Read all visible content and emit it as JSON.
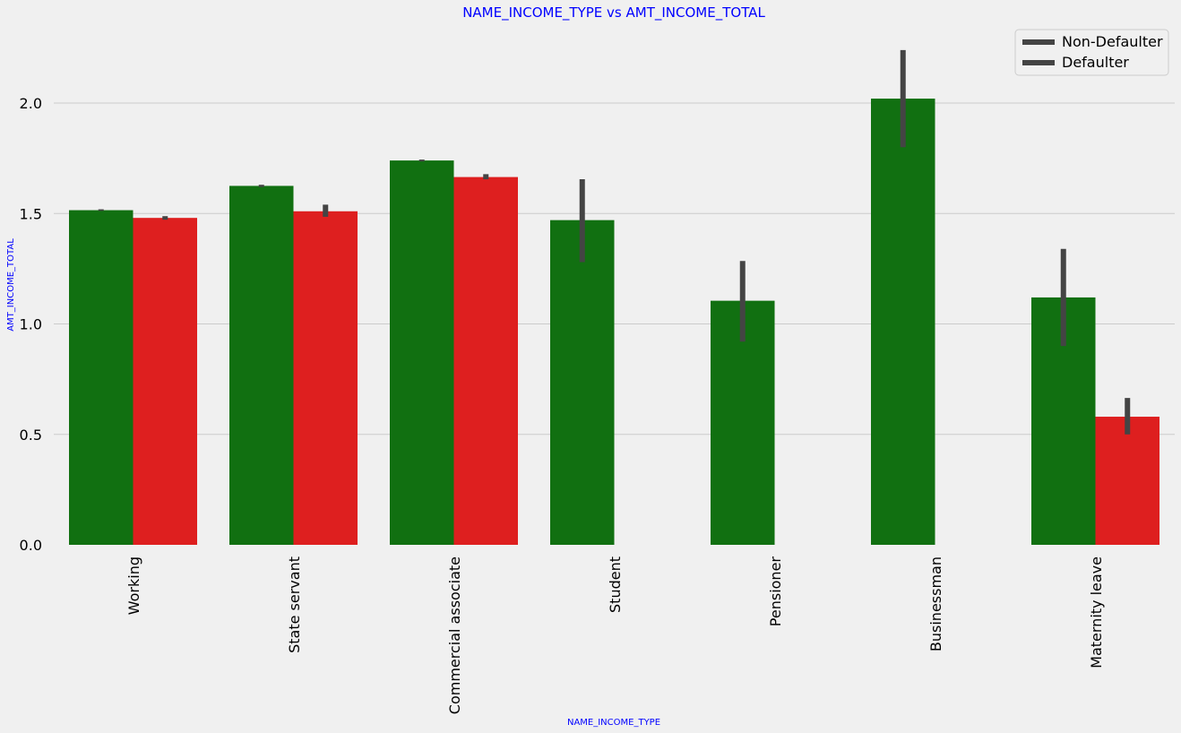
{
  "chart_data": {
    "type": "bar",
    "title": "NAME_INCOME_TYPE vs AMT_INCOME_TOTAL",
    "xlabel": "NAME_INCOME_TYPE",
    "ylabel": "AMT_INCOME_TOTAL",
    "ylim": [
      0,
      2.3
    ],
    "yticks": [
      "0.0",
      "0.5",
      "1.0",
      "1.5",
      "2.0"
    ],
    "ytick_values": [
      0,
      0.5,
      1.0,
      1.5,
      2.0
    ],
    "grid": "horizontal",
    "legend_position": "top-right",
    "categories": [
      "Working",
      "State servant",
      "Commercial associate",
      "Student",
      "Pensioner",
      "Businessman",
      "Maternity leave"
    ],
    "series": [
      {
        "name": "Non-Defaulter",
        "color": "#117011",
        "values": [
          1.515,
          1.625,
          1.74,
          1.47,
          1.105,
          2.02,
          1.12
        ],
        "ci_low": [
          1.512,
          1.62,
          1.736,
          1.28,
          0.92,
          1.8,
          0.9
        ],
        "ci_high": [
          1.519,
          1.63,
          1.744,
          1.655,
          1.285,
          2.24,
          1.34
        ]
      },
      {
        "name": "Defaulter",
        "color": "#de1f1f",
        "values": [
          1.48,
          1.51,
          1.665,
          null,
          null,
          null,
          0.58
        ],
        "ci_low": [
          1.472,
          1.485,
          1.655,
          null,
          null,
          null,
          0.5
        ],
        "ci_high": [
          1.488,
          1.54,
          1.678,
          null,
          null,
          null,
          0.665
        ]
      }
    ],
    "errorbar_color": "#444444"
  },
  "colors": {
    "background": "#f0f0f0",
    "grid": "#cbcbcb",
    "label_blue": "#0000ff",
    "text": "#000000",
    "legend_border": "#cccccc"
  }
}
